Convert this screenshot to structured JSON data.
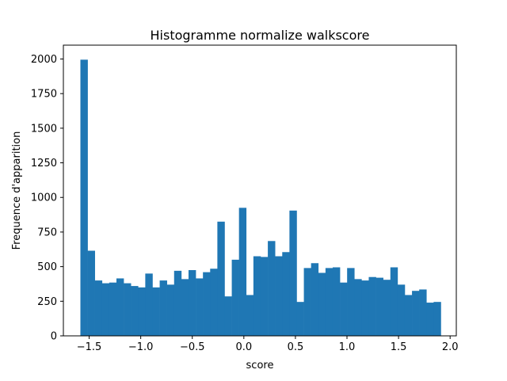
{
  "chart_data": {
    "type": "bar",
    "title": "Histogramme normalize walkscore",
    "xlabel": "score",
    "ylabel": "Frequence d'apparition",
    "xlim": [
      -1.75,
      2.06
    ],
    "ylim": [
      0,
      2100
    ],
    "bin_start": -1.585,
    "bin_width": 0.0699,
    "values": [
      1995,
      615,
      400,
      380,
      385,
      415,
      380,
      360,
      350,
      450,
      350,
      400,
      370,
      470,
      410,
      475,
      415,
      460,
      485,
      825,
      285,
      550,
      925,
      295,
      575,
      570,
      685,
      575,
      605,
      905,
      245,
      490,
      525,
      455,
      490,
      495,
      385,
      490,
      410,
      400,
      425,
      420,
      405,
      495,
      370,
      295,
      325,
      335,
      240,
      245
    ],
    "x_ticks": [
      -1.5,
      -1.0,
      -0.5,
      0.0,
      0.5,
      1.0,
      1.5,
      2.0
    ],
    "x_tick_labels": [
      "−1.5",
      "−1.0",
      "−0.5",
      "0.0",
      "0.5",
      "1.0",
      "1.5",
      "2.0"
    ],
    "y_ticks": [
      0,
      250,
      500,
      750,
      1000,
      1250,
      1500,
      1750,
      2000
    ],
    "y_tick_labels": [
      "0",
      "250",
      "500",
      "750",
      "1000",
      "1250",
      "1500",
      "1750",
      "2000"
    ],
    "bar_color": "#1f77b4",
    "grid": false,
    "legend": "none"
  }
}
